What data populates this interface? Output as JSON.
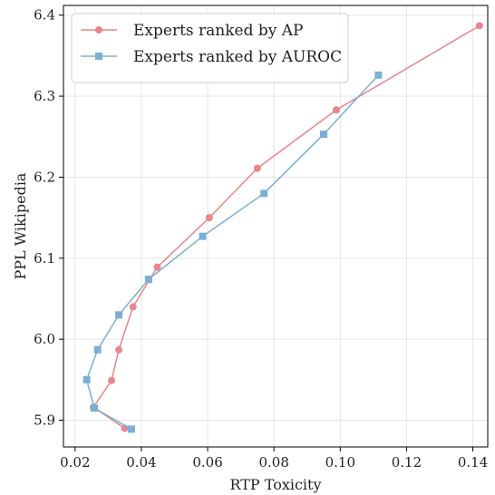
{
  "chart_data": {
    "type": "line",
    "title": "",
    "xlabel": "RTP Toxicity",
    "ylabel": "PPL Wikipedia",
    "xlim": [
      0.0165,
      0.1445
    ],
    "ylim": [
      5.867,
      6.412
    ],
    "xticks": [
      0.02,
      0.04,
      0.06,
      0.08,
      0.1,
      0.12,
      0.14
    ],
    "yticks": [
      5.9,
      6.0,
      6.1,
      6.2,
      6.3,
      6.4
    ],
    "xtick_labels": [
      "0.02",
      "0.04",
      "0.06",
      "0.08",
      "0.10",
      "0.12",
      "0.14"
    ],
    "ytick_labels": [
      "5.9",
      "6.0",
      "6.1",
      "6.2",
      "6.3",
      "6.4"
    ],
    "grid": true,
    "legend_position": "top-left",
    "series": [
      {
        "name": "Experts ranked by AP",
        "color": "#e8868c",
        "marker": "circle",
        "x": [
          0.142,
          0.0988,
          0.075,
          0.0605,
          0.0448,
          0.0375,
          0.0332,
          0.031,
          0.0255,
          0.035
        ],
        "y": [
          6.387,
          6.283,
          6.211,
          6.15,
          6.089,
          6.04,
          5.987,
          5.949,
          5.916,
          5.89
        ]
      },
      {
        "name": "Experts ranked by AUROC",
        "color": "#7bafd4",
        "marker": "square",
        "x": [
          0.1115,
          0.095,
          0.077,
          0.0585,
          0.0422,
          0.0332,
          0.0268,
          0.0235,
          0.0258,
          0.037
        ],
        "y": [
          6.326,
          6.253,
          6.18,
          6.127,
          6.074,
          6.03,
          5.987,
          5.95,
          5.915,
          5.889
        ]
      }
    ]
  }
}
